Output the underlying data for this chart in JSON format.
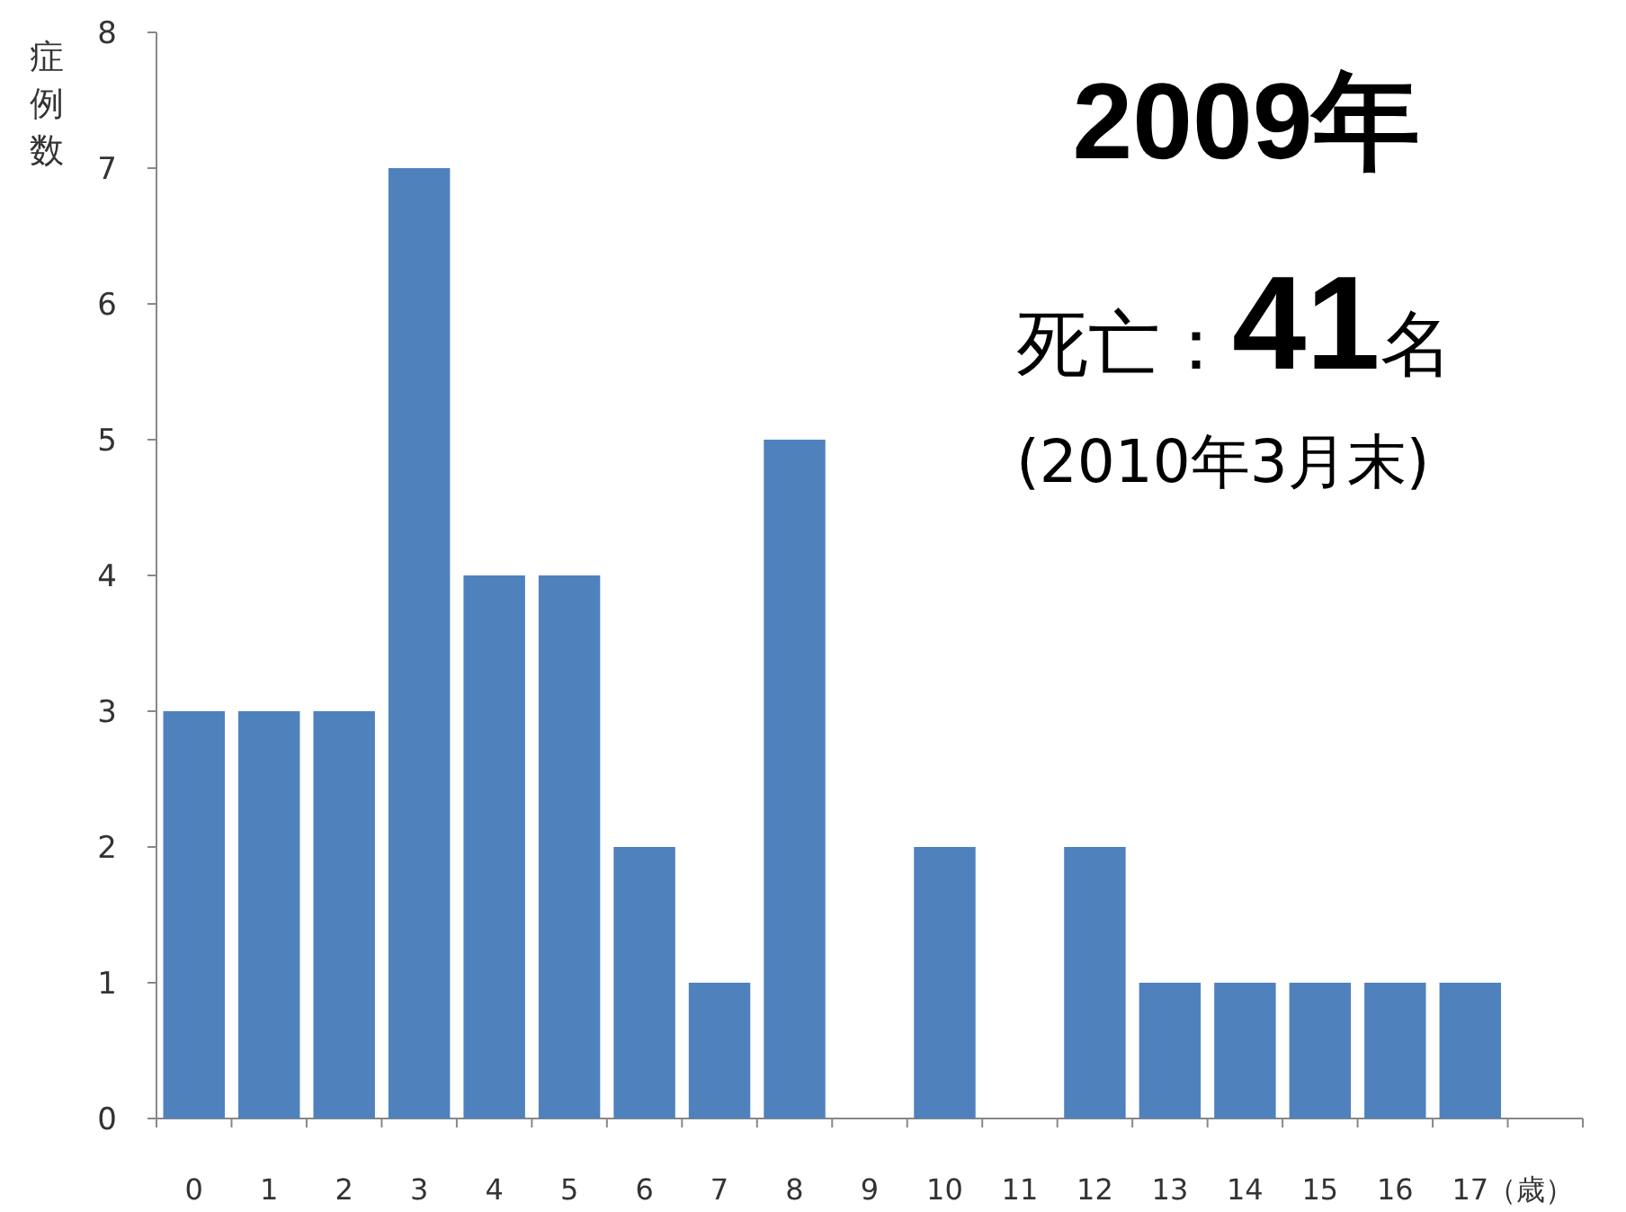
{
  "chart_data": {
    "type": "bar",
    "title": "2009年",
    "ylabel": "症例数",
    "xlabel": "（歳）",
    "annotations": [
      "死亡：**41**名",
      "(2010年3月末)"
    ],
    "categories": [
      "0",
      "1",
      "2",
      "3",
      "4",
      "5",
      "6",
      "7",
      "8",
      "9",
      "10",
      "11",
      "12",
      "13",
      "14",
      "15",
      "16",
      "17"
    ],
    "values": [
      3,
      3,
      3,
      7,
      4,
      4,
      2,
      1,
      5,
      0,
      2,
      0,
      2,
      1,
      1,
      1,
      1,
      1
    ],
    "color": "#4f81bd",
    "ylim": [
      0,
      8
    ],
    "yticks": [
      0,
      1,
      2,
      3,
      4,
      5,
      6,
      7,
      8
    ],
    "grid": false
  }
}
